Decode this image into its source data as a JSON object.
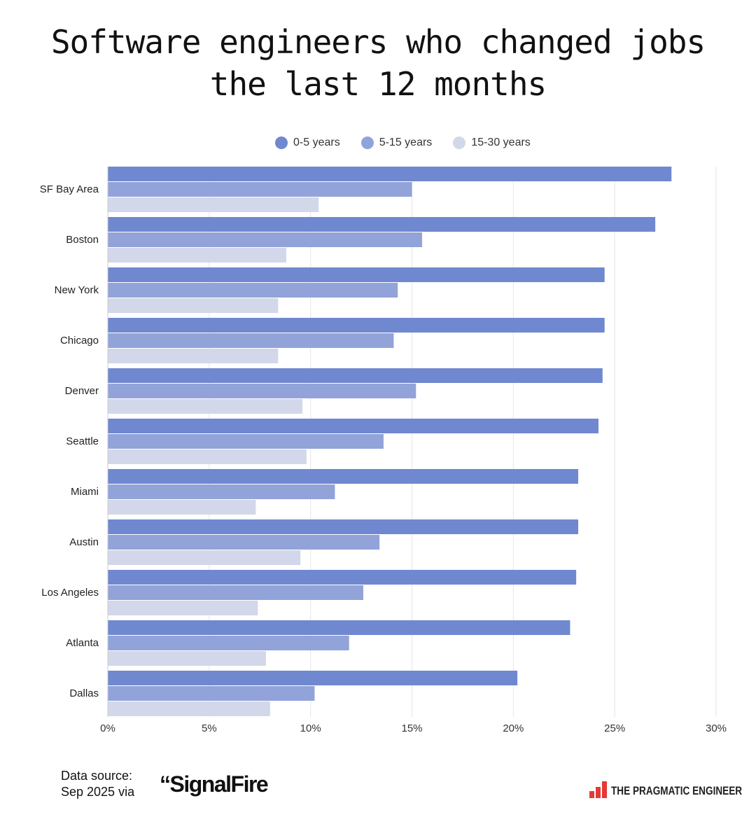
{
  "chart_data": {
    "type": "bar",
    "orientation": "horizontal",
    "title": "Software engineers who changed jobs the last 12 months",
    "title_lines": [
      "Software engineers who changed jobs",
      "the last 12 months"
    ],
    "categories": [
      "SF Bay Area",
      "Boston",
      "New York",
      "Chicago",
      "Denver",
      "Seattle",
      "Miami",
      "Austin",
      "Los Angeles",
      "Atlanta",
      "Dallas"
    ],
    "series": [
      {
        "name": "0-5 years",
        "color": "#6f88cf",
        "values": [
          27.8,
          27.0,
          24.5,
          24.5,
          24.4,
          24.2,
          23.2,
          23.2,
          23.1,
          22.8,
          20.2
        ]
      },
      {
        "name": "5-15 years",
        "color": "#92a3d9",
        "values": [
          15.0,
          15.5,
          14.3,
          14.1,
          15.2,
          13.6,
          11.2,
          13.4,
          12.6,
          11.9,
          10.2
        ]
      },
      {
        "name": "15-30 years",
        "color": "#d3d7ea",
        "values": [
          10.4,
          8.8,
          8.4,
          8.4,
          9.6,
          9.8,
          7.3,
          9.5,
          7.4,
          7.8,
          8.0
        ]
      }
    ],
    "xlim": [
      0,
      30
    ],
    "xticks": [
      0,
      5,
      10,
      15,
      20,
      25,
      30
    ],
    "xtick_labels": [
      "0%",
      "5%",
      "10%",
      "15%",
      "20%",
      "25%",
      "30%"
    ],
    "grid": true,
    "legend": "top-center",
    "xlabel": "",
    "ylabel": ""
  },
  "footer": {
    "source_line1": "Data source:",
    "source_line2": "Sep 2025 via",
    "source_logo": "SignalFire",
    "brand": "THE PRAGMATIC ENGINEER"
  }
}
